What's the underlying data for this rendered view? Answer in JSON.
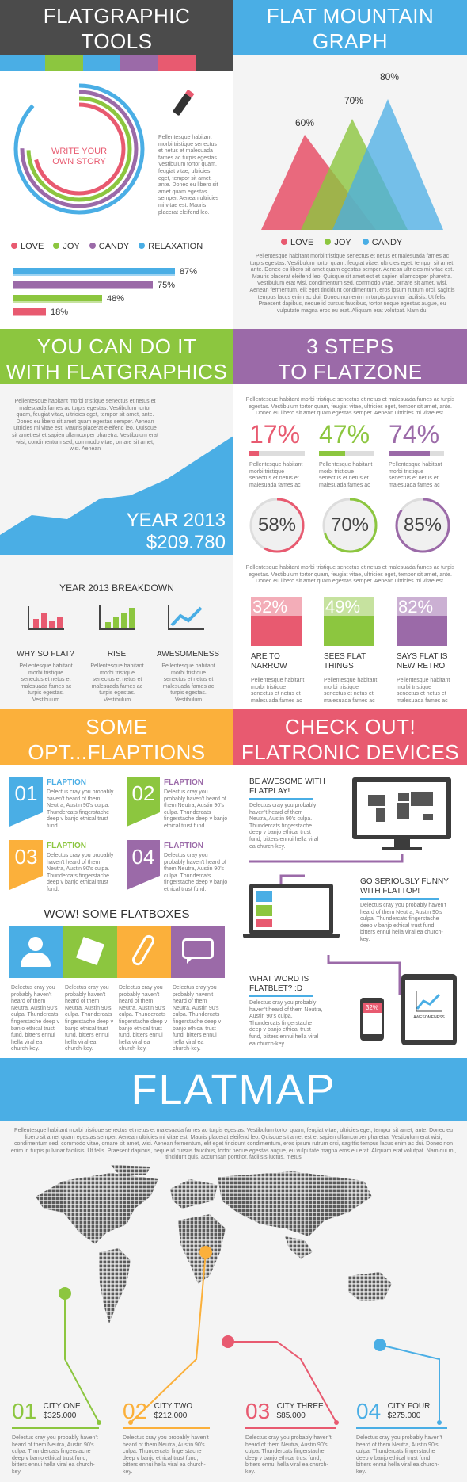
{
  "colors": {
    "dark": "#4b4b4b",
    "blue": "#4aaee5",
    "green": "#8cc63f",
    "purple": "#9b6aa8",
    "pink": "#e85a70",
    "orange": "#fbb03b"
  },
  "sections": {
    "tools": {
      "title_l1": "FLATGRAPHIC",
      "title_l2": "TOOLS",
      "story": "WRITE YOUR\nOWN STORY",
      "legend": [
        "LOVE",
        "JOY",
        "CANDY",
        "RELAXATION"
      ],
      "bars": [
        {
          "label": "87%",
          "value": 87
        },
        {
          "label": "75%",
          "value": 75
        },
        {
          "label": "48%",
          "value": 48
        },
        {
          "label": "18%",
          "value": 18
        }
      ],
      "text": "Pellentesque habitant morbi tristique senectus et netus et malesuada fames ac turpis egestas. Vestibulum tortor quam, feugiat vitae, ultricies eget, tempor sit amet, ante. Donec eu libero sit amet quam egestas semper. Aenean ultricies mi vitae est. Mauris placerat eleifend leo."
    },
    "mountain": {
      "title_l1": "FLAT MOUNTAIN",
      "title_l2": "GRAPH",
      "labels": [
        "60%",
        "70%",
        "80%"
      ],
      "legend": [
        "LOVE",
        "JOY",
        "CANDY"
      ],
      "text": "Pellentesque habitant morbi tristique senectus et netus et malesuada fames ac turpis egestas. Vestibulum tortor quam, feugiat vitae, ultricies eget, tempor sit amet, ante. Donec eu libero sit amet quam egestas semper. Aenean ultricies mi vitae est. Mauris placerat eleifend leo. Quisque sit amet est et sapien ullamcorper pharetra. Vestibulum erat wisi, condimentum sed, commodo vitae, ornare sit amet, wisi. Aenean fermentum, elit eget tincidunt condimentum, eros ipsum rutrum orci, sagittis tempus lacus enim ac dui. Donec non enim in turpis pulvinar facilisis. Ut felis. Praesent dapibus, neque id cursus faucibus, tortor neque egestas augue, eu vulputate magna eros eu erat. Aliquam erat volutpat. Nam dui"
    },
    "doit": {
      "title_l1": "YOU CAN DO IT",
      "title_l2": "WITH FLATGRAPHICS",
      "year": "YEAR 2013",
      "amount": "$209.780",
      "text": "Pellentesque habitant morbi tristique senectus et netus et malesuada fames ac turpis egestas. Vestibulum tortor quam, feugiat vitae, ultricies eget, tempor sit amet, ante. Donec eu libero sit amet quam egestas semper. Aenean ultricies mi vitae est. Mauris placerat eleifend leo. Quisque sit amet est et sapien ullamcorper pharetra. Vestibulum erat wisi, condimentum sed, commodo vitae, ornare sit amet, wisi. Aenean",
      "breakdown": "YEAR 2013 BREAKDOWN",
      "items": [
        {
          "label": "WHY SO FLAT?"
        },
        {
          "label": "RISE"
        },
        {
          "label": "AWESOMENESS"
        }
      ],
      "item_text": "Pellentesque habitant morbi tristique senectus et netus et malesuada fames ac turpis egestas. Vestibulum"
    },
    "steps": {
      "title_l1": "3 STEPS",
      "title_l2": "TO FLATZONE",
      "text": "Pellentesque habitant morbi tristique senectus et netus et malesuada fames ac turpis egestas. Vestibulum tortor quam, feugiat vitae, ultricies eget, tempor sit amet, ante. Donec eu libero sit amet quam egestas semper. Aenean ultricies mi vitae est.",
      "pcts": [
        {
          "label": "17%",
          "value": 17
        },
        {
          "label": "47%",
          "value": 47
        },
        {
          "label": "74%",
          "value": 74
        }
      ],
      "circles": [
        {
          "label": "58%",
          "value": 58
        },
        {
          "label": "70%",
          "value": 70
        },
        {
          "label": "85%",
          "value": 85
        }
      ],
      "boxes": [
        {
          "label": "32%",
          "value": 32,
          "cap1": "ARE TO",
          "cap2": "NARROW"
        },
        {
          "label": "49%",
          "value": 49,
          "cap1": "SEES FLAT",
          "cap2": "THINGS"
        },
        {
          "label": "82%",
          "value": 82,
          "cap1": "SAYS FLAT IS",
          "cap2": "NEW RETRO"
        }
      ],
      "small_text": "Pellentesque habitant morbi tristique senectus et netus et malesuada fames ac",
      "text2": "Pellentesque habitant morbi tristique senectus et netus et malesuada fames ac turpis egestas. Vestibulum tortor quam, feugiat vitae, ultricies eget, tempor sit amet, ante. Donec eu libero sit amet quam egestas semper. Aenean ultricies mi vitae est."
    },
    "options": {
      "title_l1": "SOME",
      "title_l2": "OPT...FLAPTIONS",
      "items": [
        {
          "num": "01",
          "title": "FLAPTION"
        },
        {
          "num": "02",
          "title": "FLAPTION"
        },
        {
          "num": "03",
          "title": "FLAPTION"
        },
        {
          "num": "04",
          "title": "FLAPTION"
        }
      ],
      "item_text": "Delectus cray you probably haven't heard of them Neutra, Austin 90's culpa. Thundercats fingerstache deep v banjo ethical trust fund.",
      "boxes_title": "WOW! SOME FLATBOXES",
      "box_text": "Delectus cray you probably haven't heard of them Neutra, Austin 90's culpa. Thundercats fingerstache deep v banjo ethical trust fund, bitters ennui hella viral ea church-key."
    },
    "devices": {
      "title_l1": "CHECK OUT!",
      "title_l2": "FLATRONIC DEVICES",
      "d1": "BE AWESOME WITH\nFLATPLAY!",
      "d2": "GO SERIOUSLY FUNNY\nWITH FLATTOP!",
      "d3": "WHAT WORD IS\nFLATBLET? :D",
      "d_text": "Delectus cray you probably haven't heard of them Neutra, Austin 90's culpa. Thundercats fingerstache deep v banjo ethical trust fund, bitters ennui hella viral ea church-key.",
      "phone_pct": "32%",
      "tablet_lbl": "AWESOMENESS"
    },
    "map": {
      "title": "FLATMAP",
      "text": "Pellentesque habitant morbi tristique senectus et netus et malesuada fames ac turpis egestas. Vestibulum tortor quam, feugiat vitae, ultricies eget, tempor sit amet, ante. Donec eu libero sit amet quam egestas semper. Aenean ultricies mi vitae est. Mauris placerat eleifend leo. Quisque sit amet est et sapien ullamcorper pharetra. Vestibulum erat wisi, condimentum sed, commodo vitae, ornare sit amet, wisi. Aenean fermentum, elit eget tincidunt condimentum, eros ipsum rutrum orci, sagittis tempus lacus enim ac dui. Donec non enim in turpis pulvinar facilisis. Ut felis. Praesent dapibus, neque id cursus faucibus, tortor neque egestas augue, eu vulputate magna eros eu erat. Aliquam erat volutpat. Nam dui mi, tincidunt quis, accumsan porttitor, facilisis luctus, metus",
      "cities": [
        {
          "num": "01",
          "name": "CITY ONE",
          "value": "$325.000"
        },
        {
          "num": "02",
          "name": "CITY TWO",
          "value": "$212.000"
        },
        {
          "num": "03",
          "name": "CITY THREE",
          "value": "$85.000"
        },
        {
          "num": "04",
          "name": "CITY FOUR",
          "value": "$275.000"
        }
      ],
      "city_text": "Delectus cray you probably haven't heard of them Neutra, Austin 90's culpa. Thundercats fingerstache deep v banjo ethical trust fund, bitters ennui hella viral ea church-key."
    }
  }
}
